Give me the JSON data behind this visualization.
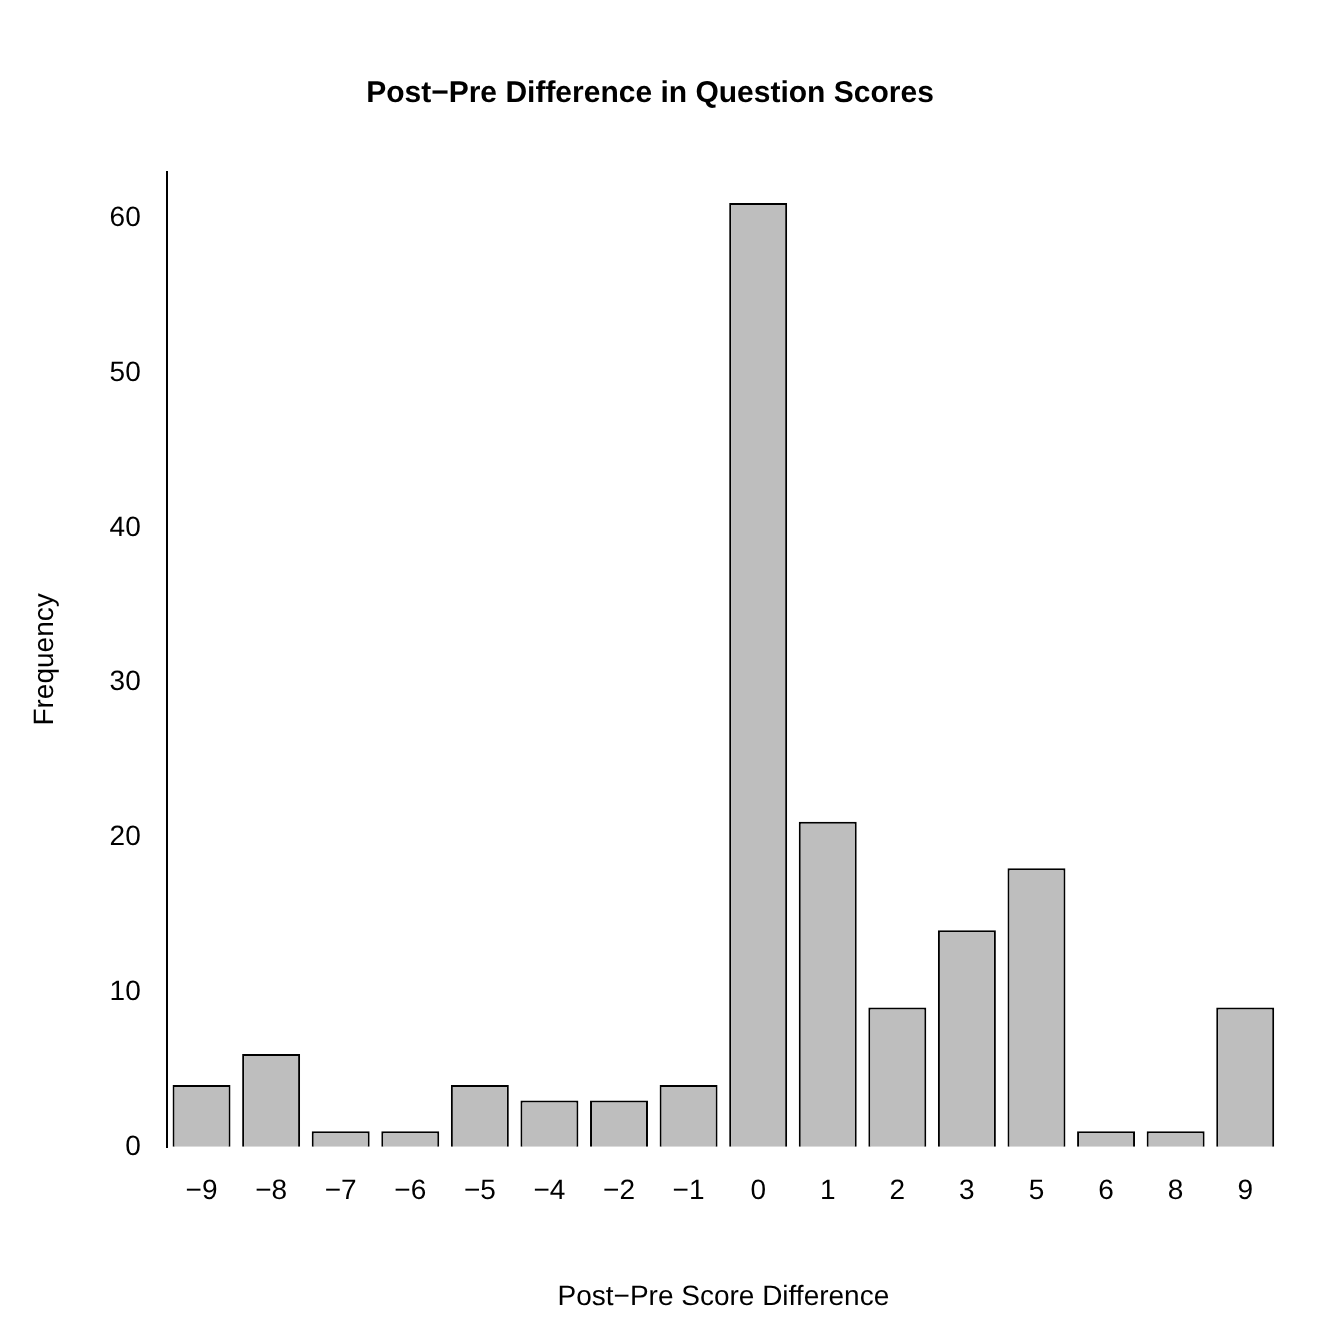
{
  "chart_data": {
    "type": "bar",
    "title": "Post−Pre Difference in Question Scores",
    "xlabel": "Post−Pre Score Difference",
    "ylabel": "Frequency",
    "categories": [
      "−9",
      "−8",
      "−7",
      "−6",
      "−5",
      "−4",
      "−2",
      "−1",
      "0",
      "1",
      "2",
      "3",
      "5",
      "6",
      "8",
      "9"
    ],
    "values": [
      4,
      6,
      1,
      1,
      4,
      3,
      3,
      4,
      61,
      21,
      9,
      14,
      18,
      1,
      1,
      9
    ],
    "color": "#bebebe",
    "ylim": [
      0,
      63
    ],
    "yticks": [
      0,
      10,
      20,
      30,
      40,
      50,
      60
    ],
    "grid": false
  }
}
